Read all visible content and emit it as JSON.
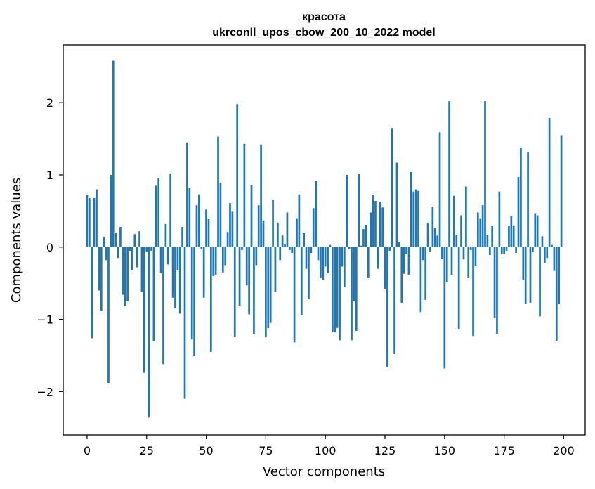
{
  "chart_data": {
    "type": "bar",
    "title": "красота",
    "subtitle": "ukrconll_upos_cbow_200_10_2022 model",
    "xlabel": "Vector components",
    "ylabel": "Components values",
    "xlim": [
      -10,
      209
    ],
    "ylim": [
      -2.6,
      2.8
    ],
    "xticks": [
      0,
      25,
      50,
      75,
      100,
      125,
      150,
      175,
      200
    ],
    "yticks": [
      -2,
      -1,
      0,
      1,
      2
    ],
    "ytick_labels": [
      "−2",
      "−1",
      "0",
      "1",
      "2"
    ],
    "grid": false,
    "bar_color": "#1f77b4",
    "x": [
      0,
      1,
      2,
      3,
      4,
      5,
      6,
      7,
      8,
      9,
      10,
      11,
      12,
      13,
      14,
      15,
      16,
      17,
      18,
      19,
      20,
      21,
      22,
      23,
      24,
      25,
      26,
      27,
      28,
      29,
      30,
      31,
      32,
      33,
      34,
      35,
      36,
      37,
      38,
      39,
      40,
      41,
      42,
      43,
      44,
      45,
      46,
      47,
      48,
      49,
      50,
      51,
      52,
      53,
      54,
      55,
      56,
      57,
      58,
      59,
      60,
      61,
      62,
      63,
      64,
      65,
      66,
      67,
      68,
      69,
      70,
      71,
      72,
      73,
      74,
      75,
      76,
      77,
      78,
      79,
      80,
      81,
      82,
      83,
      84,
      85,
      86,
      87,
      88,
      89,
      90,
      91,
      92,
      93,
      94,
      95,
      96,
      97,
      98,
      99,
      100,
      101,
      102,
      103,
      104,
      105,
      106,
      107,
      108,
      109,
      110,
      111,
      112,
      113,
      114,
      115,
      116,
      117,
      118,
      119,
      120,
      121,
      122,
      123,
      124,
      125,
      126,
      127,
      128,
      129,
      130,
      131,
      132,
      133,
      134,
      135,
      136,
      137,
      138,
      139,
      140,
      141,
      142,
      143,
      144,
      145,
      146,
      147,
      148,
      149,
      150,
      151,
      152,
      153,
      154,
      155,
      156,
      157,
      158,
      159,
      160,
      161,
      162,
      163,
      164,
      165,
      166,
      167,
      168,
      169,
      170,
      171,
      172,
      173,
      174,
      175,
      176,
      177,
      178,
      179,
      180,
      181,
      182,
      183,
      184,
      185,
      186,
      187,
      188,
      189,
      190,
      191,
      192,
      193,
      194,
      195,
      196,
      197,
      198,
      199
    ],
    "values": [
      0.72,
      0.68,
      -1.26,
      0.68,
      0.8,
      -0.6,
      -0.88,
      0.14,
      -0.18,
      -1.88,
      1.0,
      2.58,
      0.2,
      -0.15,
      0.28,
      -0.66,
      -0.82,
      -0.75,
      -0.05,
      -0.32,
      0.18,
      -0.28,
      0.22,
      -0.62,
      -1.74,
      -0.06,
      -2.36,
      -0.05,
      -1.3,
      0.85,
      0.96,
      -0.36,
      -1.62,
      0.32,
      -0.24,
      1.02,
      -0.7,
      -0.85,
      -0.32,
      -0.92,
      0.28,
      -2.1,
      1.45,
      0.82,
      -1.28,
      -1.5,
      0.58,
      0.73,
      -0.02,
      -0.7,
      0.52,
      0.39,
      -1.45,
      -0.4,
      -0.38,
      1.53,
      0.89,
      -0.35,
      -0.25,
      0.21,
      0.61,
      0.49,
      -1.24,
      1.98,
      -0.82,
      -0.04,
      1.43,
      -0.53,
      -0.93,
      0.86,
      -1.2,
      -0.25,
      0.58,
      1.42,
      0.37,
      -1.25,
      -1.12,
      -1.05,
      0.66,
      -0.62,
      0.34,
      -0.18,
      0.16,
      0.04,
      0.48,
      -0.04,
      -0.08,
      -1.32,
      0.4,
      0.73,
      -0.94,
      0.2,
      -0.3,
      -0.72,
      -0.08,
      0.54,
      0.92,
      -0.18,
      -0.42,
      -0.45,
      -0.27,
      -0.36,
      0.03,
      -1.17,
      -1.18,
      -1.12,
      -1.29,
      -0.27,
      -0.55,
      1.0,
      -0.03,
      -1.29,
      -0.75,
      -1.16,
      1.01,
      0.02,
      0.25,
      0.31,
      -0.42,
      0.48,
      0.72,
      0.64,
      -0.3,
      0.63,
      0.55,
      -0.58,
      -1.66,
      -0.05,
      1.65,
      -1.48,
      1.17,
      0.07,
      -0.77,
      -0.37,
      -0.1,
      -0.38,
      1.04,
      0.77,
      0.8,
      0.78,
      -0.9,
      -0.18,
      -0.73,
      0.34,
      -0.06,
      0.56,
      0.27,
      0.16,
      1.59,
      -0.16,
      -1.68,
      -0.48,
      2.02,
      -0.39,
      0.71,
      0.17,
      -1.13,
      0.44,
      -0.17,
      0.84,
      -0.42,
      -0.04,
      -1.23,
      -0.26,
      0.48,
      0.4,
      0.58,
      2.02,
      0.17,
      -0.11,
      0.3,
      -0.98,
      -1.2,
      0.77,
      -0.09,
      -0.09,
      -0.05,
      0.3,
      0.43,
      0.3,
      -0.08,
      0.97,
      1.38,
      -0.45,
      -0.78,
      1.32,
      -0.77,
      -0.06,
      0.47,
      0.44,
      -0.96,
      0.15,
      -0.22,
      -0.15,
      1.79,
      0.03,
      -0.33,
      -1.3,
      -0.79,
      1.55
    ]
  }
}
